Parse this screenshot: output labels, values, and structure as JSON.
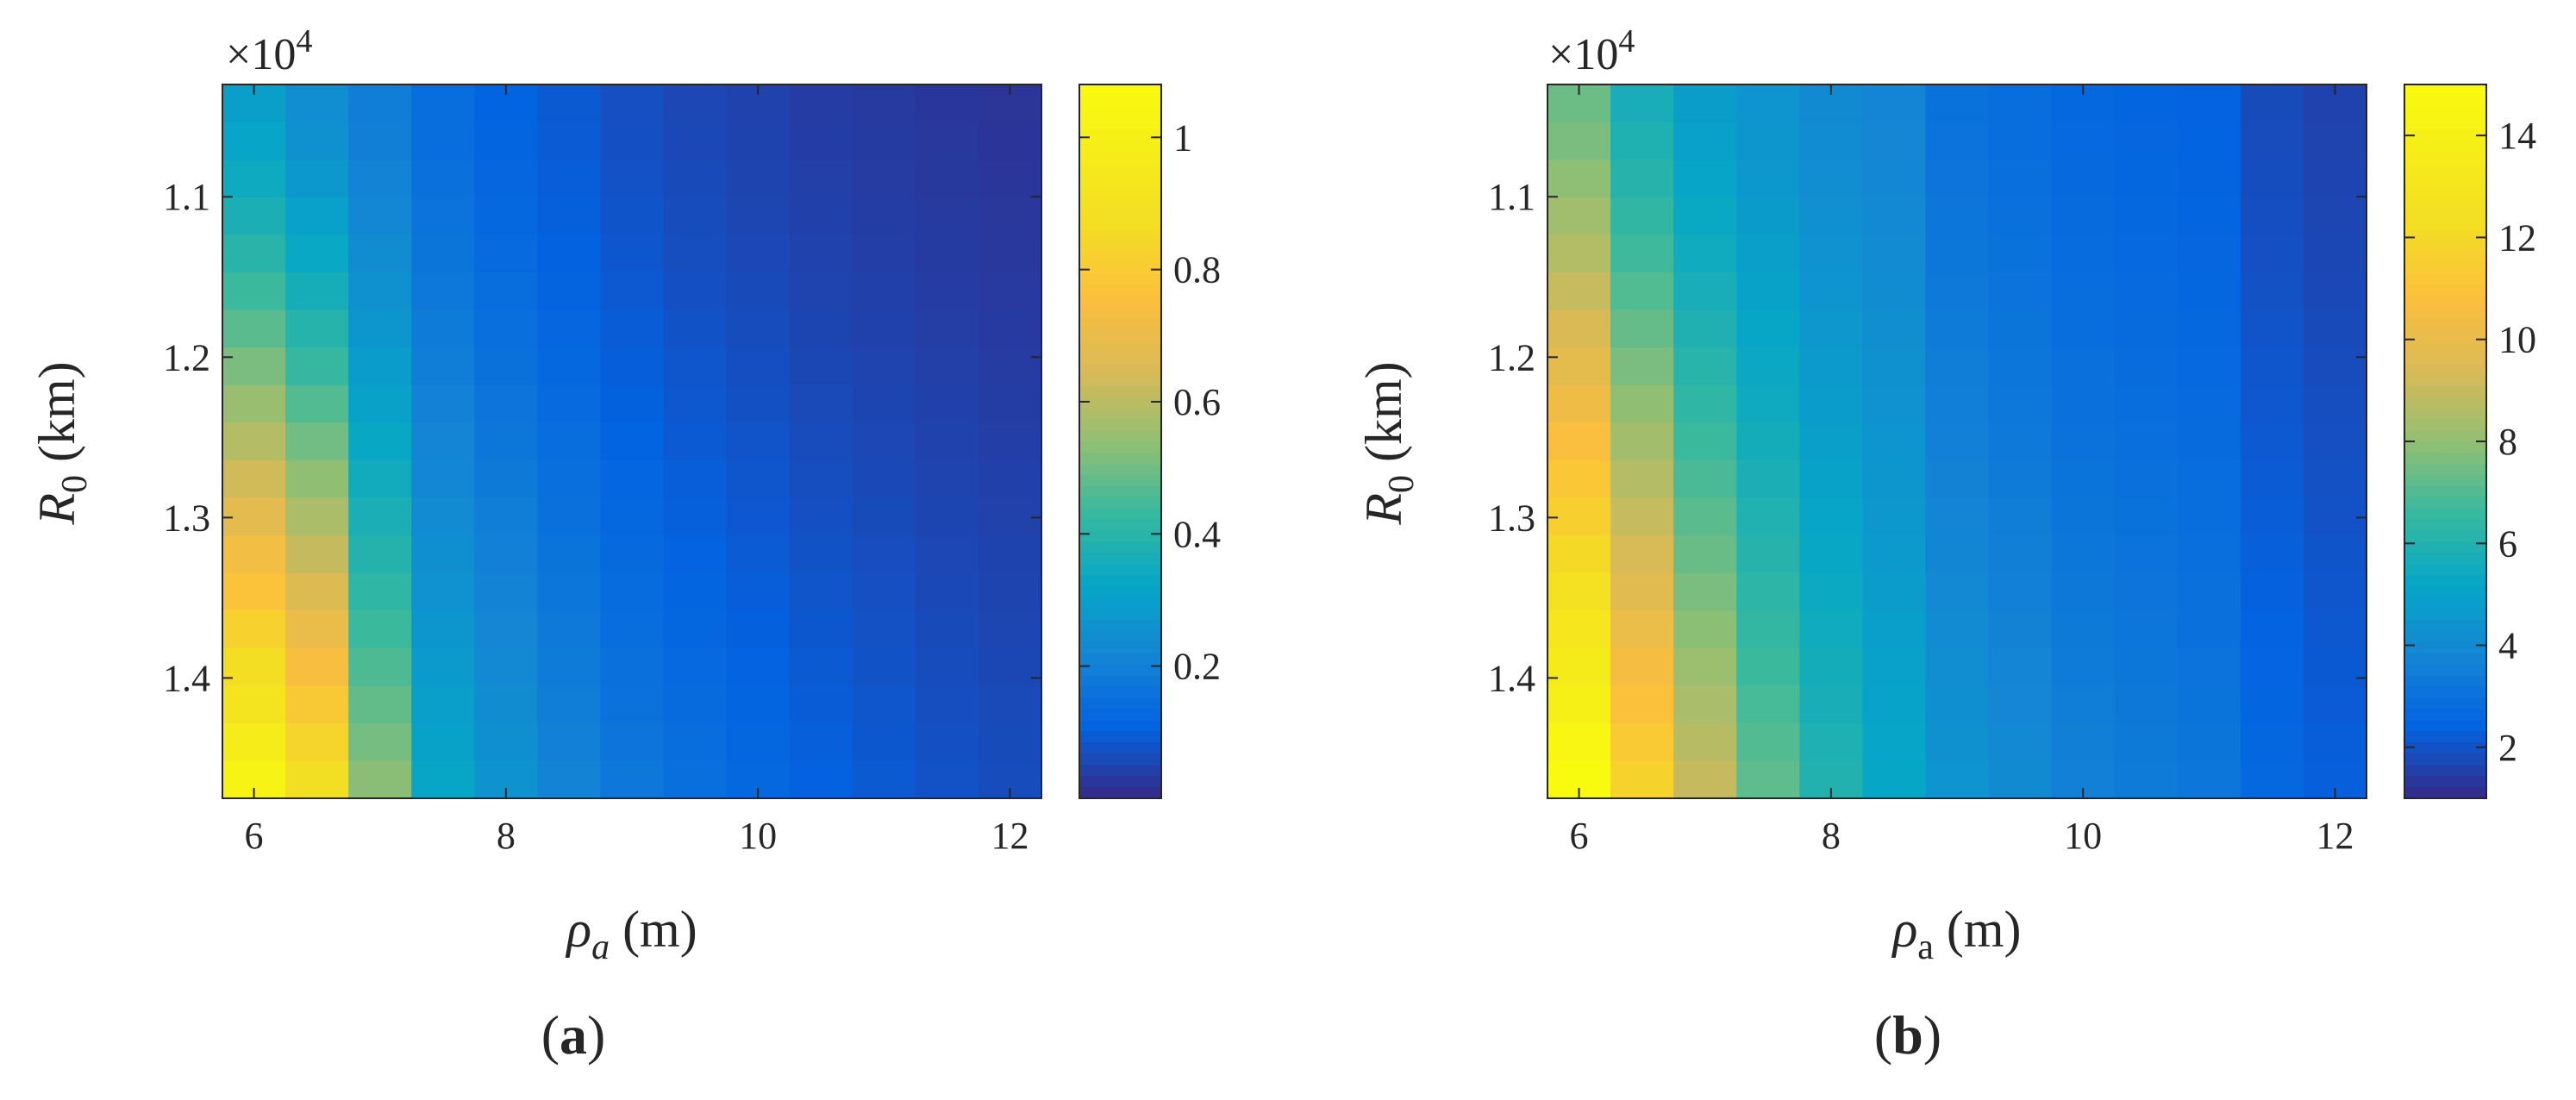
{
  "panels": [
    {
      "label": "a",
      "multiplier": "×10",
      "multiplier_exp": "4",
      "xlabel": {
        "symbol": "ρ",
        "sub": "a",
        "sub_italic": true,
        "unit": " (m)"
      },
      "ylabel": {
        "symbol": "R",
        "sub": "0",
        "unit": " (km)"
      },
      "colorbar_ticks": [
        "1",
        "0.8",
        "0.6",
        "0.4",
        "0.2"
      ]
    },
    {
      "label": "b",
      "multiplier": "×10",
      "multiplier_exp": "4",
      "xlabel": {
        "symbol": "ρ",
        "sub": "a",
        "sub_italic": false,
        "unit": " (m)"
      },
      "ylabel": {
        "symbol": "R",
        "sub": "0",
        "unit": " (km)"
      },
      "colorbar_ticks": [
        "14",
        "12",
        "10",
        "8",
        "6",
        "4",
        "2"
      ]
    }
  ],
  "chart_data": [
    {
      "type": "heatmap",
      "title": "",
      "colormap": "parula",
      "x_range": [
        5.75,
        12.25
      ],
      "x_cells": 13,
      "x_ticks": [
        6,
        8,
        10,
        12
      ],
      "x_tick_labels": [
        "6",
        "8",
        "10",
        "12"
      ],
      "y_range": [
        10300,
        14750
      ],
      "y_cells": 19,
      "y_ticks": [
        11000,
        12000,
        13000,
        14000
      ],
      "y_tick_labels": [
        "1.1",
        "1.2",
        "1.3",
        "1.4"
      ],
      "color_range": [
        0.0,
        1.08
      ],
      "colorbar_tick_values": [
        1.0,
        0.8,
        0.6,
        0.4,
        0.2
      ],
      "value_model": {
        "base": [
          0.3,
          0.24,
          0.19,
          0.14,
          0.11,
          0.09,
          0.07,
          0.055,
          0.045,
          0.035,
          0.03,
          0.025,
          0.02
        ],
        "gain": [
          0.72,
          0.64,
          0.34,
          0.18,
          0.15,
          0.12,
          0.1,
          0.09,
          0.08,
          0.07,
          0.06,
          0.05,
          0.045
        ],
        "power": 1.3
      }
    },
    {
      "type": "heatmap",
      "title": "",
      "colormap": "parula",
      "x_range": [
        5.75,
        12.25
      ],
      "x_cells": 13,
      "x_ticks": [
        6,
        8,
        10,
        12
      ],
      "x_tick_labels": [
        "6",
        "8",
        "10",
        "12"
      ],
      "y_range": [
        10300,
        14750
      ],
      "y_cells": 19,
      "y_ticks": [
        11000,
        12000,
        13000,
        14000
      ],
      "y_tick_labels": [
        "1.1",
        "1.2",
        "1.3",
        "1.4"
      ],
      "color_range": [
        1.0,
        15.0
      ],
      "colorbar_tick_values": [
        14,
        12,
        10,
        8,
        6,
        4,
        2
      ],
      "value_model": {
        "base": [
          7.4,
          5.7,
          4.8,
          4.4,
          4.0,
          3.8,
          3.0,
          2.8,
          2.6,
          2.5,
          2.4,
          1.8,
          1.6
        ],
        "gain": [
          7.6,
          6.0,
          4.2,
          2.8,
          2.0,
          1.4,
          1.4,
          1.2,
          1.0,
          0.9,
          0.8,
          0.8,
          0.7
        ],
        "power": 1.2
      }
    }
  ]
}
